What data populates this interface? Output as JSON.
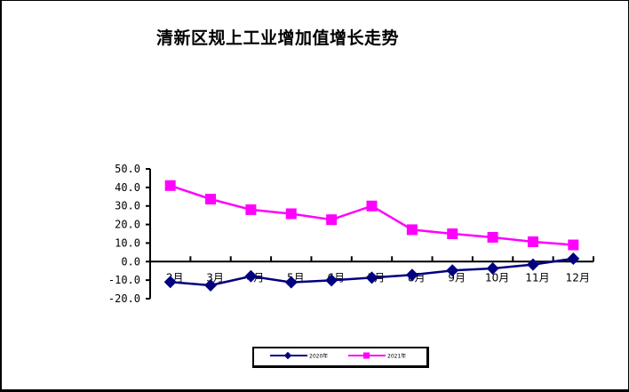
{
  "chart_data": {
    "type": "line",
    "title": "清新区规上工业增加值增长走势",
    "xlabel": "",
    "ylabel": "",
    "categories": [
      "2月",
      "3月",
      "4月",
      "5月",
      "6月",
      "7月",
      "8月",
      "9月",
      "10月",
      "11月",
      "12月"
    ],
    "series": [
      {
        "name": "2020年",
        "color": "#000080",
        "marker": "diamond",
        "values": [
          -11.0,
          -12.8,
          -7.9,
          -11.2,
          -10.1,
          -8.7,
          -7.2,
          -4.8,
          -3.7,
          -1.6,
          1.6
        ]
      },
      {
        "name": "2021年",
        "color": "#FF00FF",
        "marker": "square",
        "values": [
          41.0,
          33.7,
          28.0,
          25.8,
          22.6,
          30.0,
          17.2,
          15.0,
          13.1,
          10.7,
          9.0
        ]
      }
    ],
    "ylim": [
      -20,
      50
    ],
    "yticks": [
      "50.0",
      "40.0",
      "30.0",
      "20.0",
      "10.0",
      "0.0",
      "-10.0",
      "-20.0"
    ],
    "grid": false,
    "legend_position": "bottom"
  },
  "legend": {
    "items": [
      {
        "label": "2020年",
        "color": "#000080"
      },
      {
        "label": "2021年",
        "color": "#FF00FF"
      }
    ]
  }
}
